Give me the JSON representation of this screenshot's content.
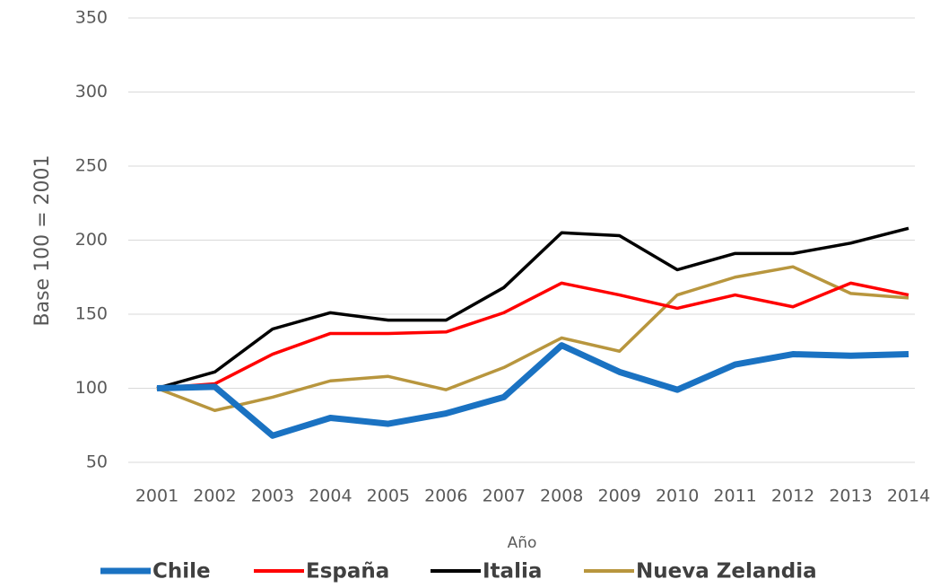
{
  "chart_data": {
    "type": "line",
    "y_label": "Base 100 = 2001",
    "x_label": "Año",
    "categories": [
      "2001",
      "2002",
      "2003",
      "2004",
      "2005",
      "2006",
      "2007",
      "2008",
      "2009",
      "2010",
      "2011",
      "2012",
      "2013",
      "2014"
    ],
    "series": [
      {
        "name": "Chile",
        "color": "#1a72c2",
        "values": [
          100,
          101,
          68,
          80,
          76,
          83,
          94,
          129,
          111,
          99,
          116,
          123,
          122,
          123
        ]
      },
      {
        "name": "España",
        "color": "#ff0000",
        "values": [
          100,
          103,
          123,
          137,
          137,
          138,
          151,
          171,
          163,
          154,
          163,
          155,
          171,
          163
        ]
      },
      {
        "name": "Italia",
        "color": "#000000",
        "values": [
          100,
          111,
          140,
          151,
          146,
          146,
          168,
          205,
          203,
          180,
          191,
          191,
          198,
          208
        ]
      },
      {
        "name": "Nueva Zelandia",
        "color": "#b8963e",
        "values": [
          100,
          85,
          94,
          105,
          108,
          99,
          114,
          134,
          125,
          163,
          175,
          182,
          164,
          161
        ]
      }
    ],
    "ylim": [
      50,
      350
    ],
    "yticks": [
      50,
      100,
      150,
      200,
      250,
      300,
      350
    ],
    "grid": true,
    "legend": "bottom"
  }
}
